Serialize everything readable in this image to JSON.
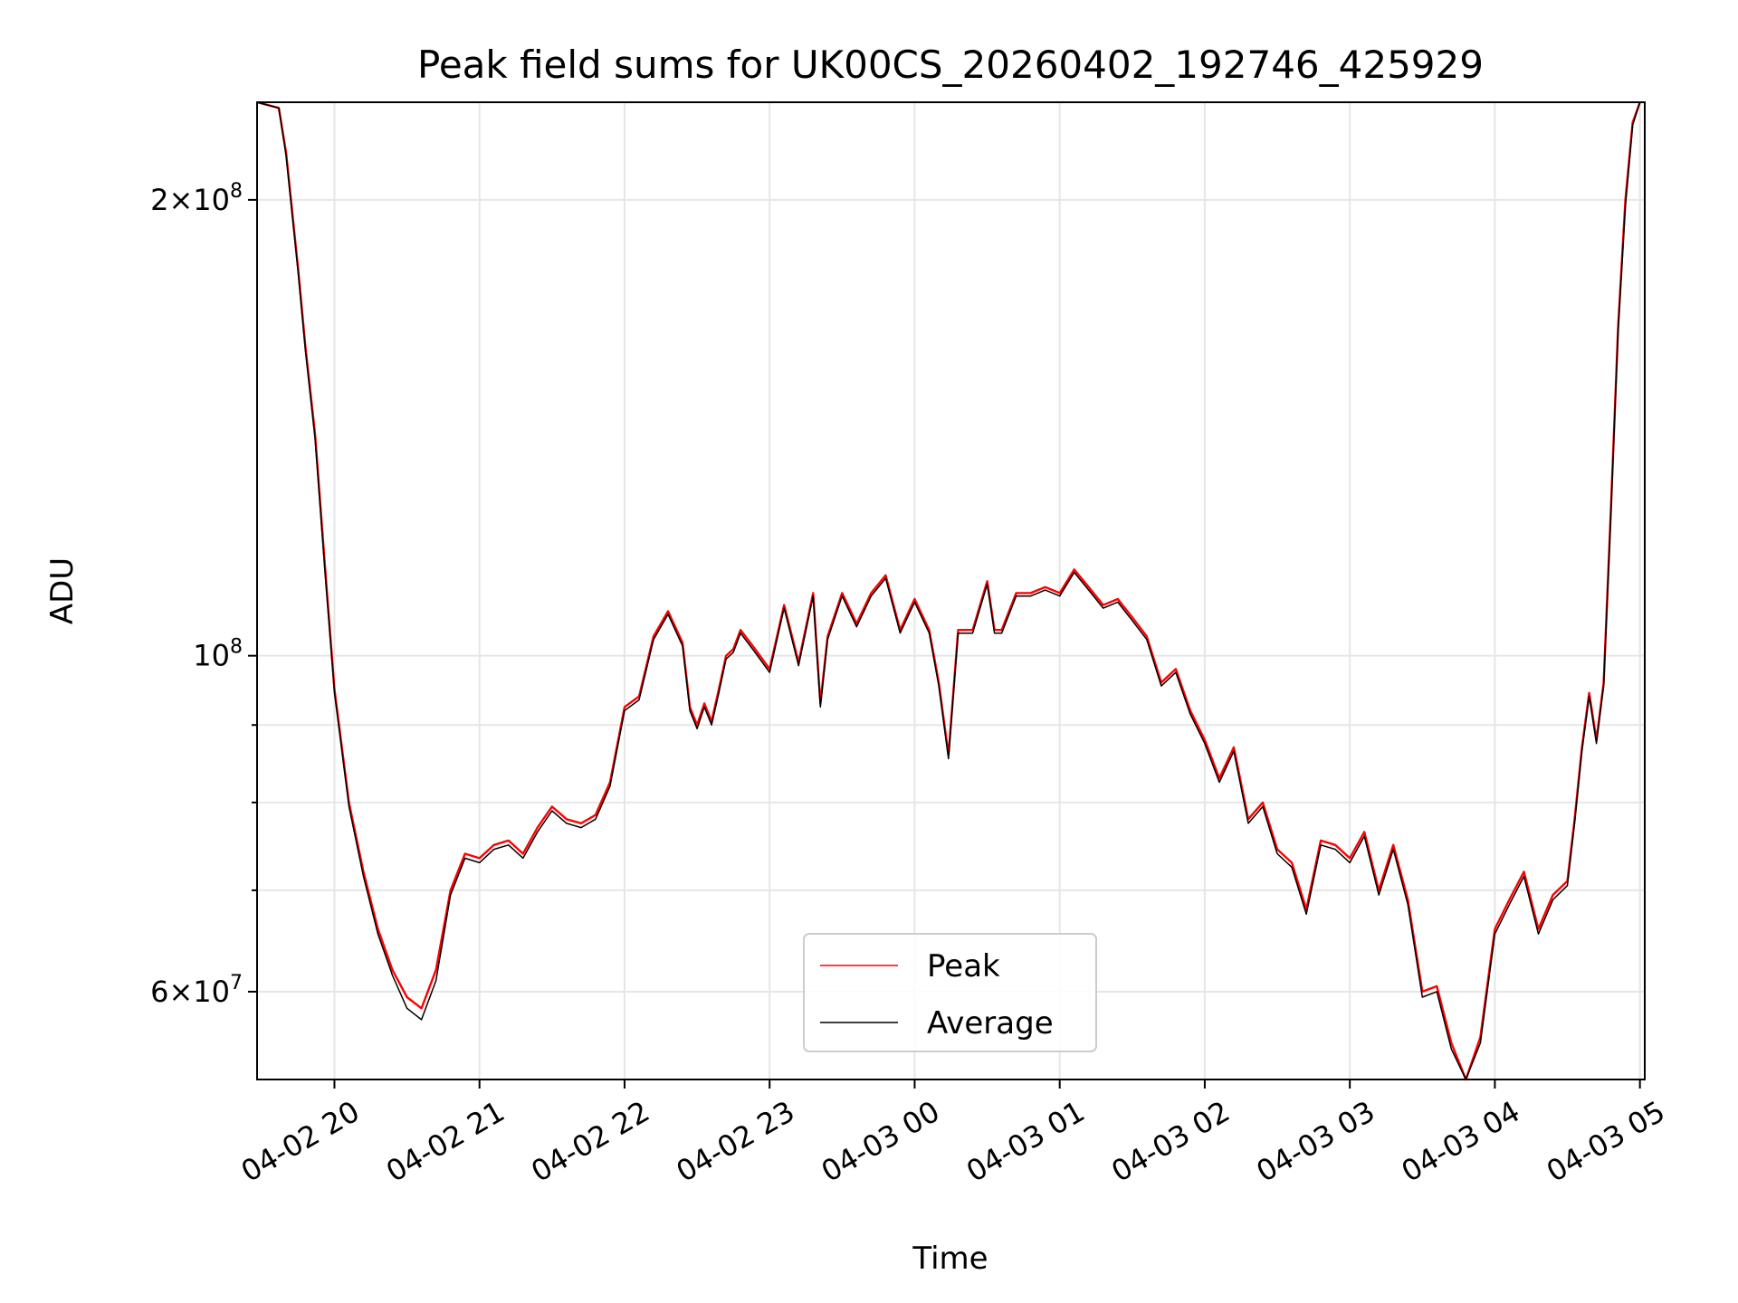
{
  "chart_data": {
    "type": "line",
    "title": "Peak field sums for UK00CS_20260402_192746_425929",
    "xlabel": "Time",
    "ylabel": "ADU",
    "yscale": "log",
    "xlim": [
      "2026-04-02T19:28",
      "2026-04-03T05:02"
    ],
    "ylim": [
      52500000,
      232000000
    ],
    "grid": true,
    "legend_position": "lower-center",
    "x_ticks": [
      {
        "t": "2026-04-02T20:00",
        "label": "04-02 20"
      },
      {
        "t": "2026-04-02T21:00",
        "label": "04-02 21"
      },
      {
        "t": "2026-04-02T22:00",
        "label": "04-02 22"
      },
      {
        "t": "2026-04-02T23:00",
        "label": "04-02 23"
      },
      {
        "t": "2026-04-03T00:00",
        "label": "04-03 00"
      },
      {
        "t": "2026-04-03T01:00",
        "label": "04-03 01"
      },
      {
        "t": "2026-04-03T02:00",
        "label": "04-03 02"
      },
      {
        "t": "2026-04-03T03:00",
        "label": "04-03 03"
      },
      {
        "t": "2026-04-03T04:00",
        "label": "04-03 04"
      },
      {
        "t": "2026-04-03T05:00",
        "label": "04-03 05"
      }
    ],
    "y_major_ticks": [
      {
        "value": 60000000,
        "mantissa": "6",
        "exponent": "7"
      },
      {
        "value": 100000000,
        "mantissa": "",
        "exponent": "8"
      },
      {
        "value": 200000000,
        "mantissa": "2",
        "exponent": "8"
      }
    ],
    "y_minor_ticks": [
      70000000,
      80000000,
      90000000
    ],
    "series": [
      {
        "name": "Peak",
        "color": "#ff0000",
        "x": [
          "2026-04-02T19:28",
          "2026-04-02T19:37",
          "2026-04-02T19:40",
          "2026-04-02T19:45",
          "2026-04-02T19:48",
          "2026-04-02T19:52",
          "2026-04-02T19:56",
          "2026-04-02T20:00",
          "2026-04-02T20:06",
          "2026-04-02T20:12",
          "2026-04-02T20:18",
          "2026-04-02T20:24",
          "2026-04-02T20:30",
          "2026-04-02T20:36",
          "2026-04-02T20:42",
          "2026-04-02T20:48",
          "2026-04-02T20:54",
          "2026-04-02T21:00",
          "2026-04-02T21:06",
          "2026-04-02T21:12",
          "2026-04-02T21:18",
          "2026-04-02T21:24",
          "2026-04-02T21:30",
          "2026-04-02T21:36",
          "2026-04-02T21:42",
          "2026-04-02T21:48",
          "2026-04-02T21:54",
          "2026-04-02T22:00",
          "2026-04-02T22:06",
          "2026-04-02T22:12",
          "2026-04-02T22:18",
          "2026-04-02T22:24",
          "2026-04-02T22:27",
          "2026-04-02T22:30",
          "2026-04-02T22:33",
          "2026-04-02T22:36",
          "2026-04-02T22:39",
          "2026-04-02T22:42",
          "2026-04-02T22:45",
          "2026-04-02T22:48",
          "2026-04-02T22:54",
          "2026-04-02T23:00",
          "2026-04-02T23:06",
          "2026-04-02T23:12",
          "2026-04-02T23:18",
          "2026-04-02T23:21",
          "2026-04-02T23:24",
          "2026-04-02T23:30",
          "2026-04-02T23:36",
          "2026-04-02T23:42",
          "2026-04-02T23:48",
          "2026-04-02T23:54",
          "2026-04-03T00:00",
          "2026-04-03T00:06",
          "2026-04-03T00:10",
          "2026-04-03T00:14",
          "2026-04-03T00:18",
          "2026-04-03T00:24",
          "2026-04-03T00:30",
          "2026-04-03T00:33",
          "2026-04-03T00:36",
          "2026-04-03T00:42",
          "2026-04-03T00:48",
          "2026-04-03T00:54",
          "2026-04-03T01:00",
          "2026-04-03T01:06",
          "2026-04-03T01:12",
          "2026-04-03T01:18",
          "2026-04-03T01:24",
          "2026-04-03T01:30",
          "2026-04-03T01:36",
          "2026-04-03T01:42",
          "2026-04-03T01:48",
          "2026-04-03T01:54",
          "2026-04-03T02:00",
          "2026-04-03T02:06",
          "2026-04-03T02:12",
          "2026-04-03T02:18",
          "2026-04-03T02:24",
          "2026-04-03T02:30",
          "2026-04-03T02:36",
          "2026-04-03T02:42",
          "2026-04-03T02:48",
          "2026-04-03T02:54",
          "2026-04-03T03:00",
          "2026-04-03T03:06",
          "2026-04-03T03:12",
          "2026-04-03T03:18",
          "2026-04-03T03:24",
          "2026-04-03T03:30",
          "2026-04-03T03:36",
          "2026-04-03T03:42",
          "2026-04-03T03:48",
          "2026-04-03T03:54",
          "2026-04-03T04:00",
          "2026-04-03T04:06",
          "2026-04-03T04:12",
          "2026-04-03T04:18",
          "2026-04-03T04:24",
          "2026-04-03T04:30",
          "2026-04-03T04:33",
          "2026-04-03T04:36",
          "2026-04-03T04:39",
          "2026-04-03T04:42",
          "2026-04-03T04:45",
          "2026-04-03T04:48",
          "2026-04-03T04:51",
          "2026-04-03T04:54",
          "2026-04-03T04:57",
          "2026-04-03T05:00"
        ],
        "values": [
          232000000,
          230000000,
          215000000,
          180000000,
          160000000,
          140000000,
          115000000,
          95000000,
          80000000,
          72000000,
          66000000,
          62000000,
          59500000,
          58500000,
          62000000,
          70000000,
          74000000,
          73500000,
          75000000,
          75500000,
          74000000,
          77000000,
          79500000,
          78000000,
          77500000,
          78500000,
          82500000,
          92500000,
          94000000,
          103000000,
          107000000,
          102000000,
          92500000,
          90000000,
          93000000,
          90500000,
          95000000,
          100000000,
          101000000,
          104000000,
          101000000,
          98000000,
          108000000,
          99000000,
          110000000,
          93000000,
          103000000,
          110000000,
          105000000,
          110000000,
          113000000,
          104000000,
          109000000,
          104000000,
          96000000,
          86000000,
          104000000,
          104000000,
          112000000,
          104000000,
          104000000,
          110000000,
          110000000,
          111000000,
          110000000,
          114000000,
          111000000,
          108000000,
          109000000,
          106000000,
          103000000,
          96000000,
          98000000,
          92000000,
          88000000,
          83000000,
          87000000,
          78000000,
          80000000,
          74500000,
          73000000,
          68000000,
          75500000,
          75000000,
          73500000,
          76500000,
          70000000,
          75000000,
          69000000,
          60000000,
          60500000,
          55500000,
          52500000,
          56000000,
          66000000,
          69000000,
          72000000,
          66000000,
          69500000,
          71000000,
          78000000,
          87000000,
          94500000,
          88000000,
          96000000,
          125000000,
          165000000,
          200000000,
          225000000,
          232000000
        ]
      },
      {
        "name": "Average",
        "color": "#000000",
        "x": [
          "2026-04-02T19:28",
          "2026-04-02T19:37",
          "2026-04-02T19:40",
          "2026-04-02T19:45",
          "2026-04-02T19:48",
          "2026-04-02T19:52",
          "2026-04-02T19:56",
          "2026-04-02T20:00",
          "2026-04-02T20:06",
          "2026-04-02T20:12",
          "2026-04-02T20:18",
          "2026-04-02T20:24",
          "2026-04-02T20:30",
          "2026-04-02T20:36",
          "2026-04-02T20:42",
          "2026-04-02T20:48",
          "2026-04-02T20:54",
          "2026-04-02T21:00",
          "2026-04-02T21:06",
          "2026-04-02T21:12",
          "2026-04-02T21:18",
          "2026-04-02T21:24",
          "2026-04-02T21:30",
          "2026-04-02T21:36",
          "2026-04-02T21:42",
          "2026-04-02T21:48",
          "2026-04-02T21:54",
          "2026-04-02T22:00",
          "2026-04-02T22:06",
          "2026-04-02T22:12",
          "2026-04-02T22:18",
          "2026-04-02T22:24",
          "2026-04-02T22:27",
          "2026-04-02T22:30",
          "2026-04-02T22:33",
          "2026-04-02T22:36",
          "2026-04-02T22:39",
          "2026-04-02T22:42",
          "2026-04-02T22:45",
          "2026-04-02T22:48",
          "2026-04-02T22:54",
          "2026-04-02T23:00",
          "2026-04-02T23:06",
          "2026-04-02T23:12",
          "2026-04-02T23:18",
          "2026-04-02T23:21",
          "2026-04-02T23:24",
          "2026-04-02T23:30",
          "2026-04-02T23:36",
          "2026-04-02T23:42",
          "2026-04-02T23:48",
          "2026-04-02T23:54",
          "2026-04-03T00:00",
          "2026-04-03T00:06",
          "2026-04-03T00:10",
          "2026-04-03T00:14",
          "2026-04-03T00:18",
          "2026-04-03T00:24",
          "2026-04-03T00:30",
          "2026-04-03T00:33",
          "2026-04-03T00:36",
          "2026-04-03T00:42",
          "2026-04-03T00:48",
          "2026-04-03T00:54",
          "2026-04-03T01:00",
          "2026-04-03T01:06",
          "2026-04-03T01:12",
          "2026-04-03T01:18",
          "2026-04-03T01:24",
          "2026-04-03T01:30",
          "2026-04-03T01:36",
          "2026-04-03T01:42",
          "2026-04-03T01:48",
          "2026-04-03T01:54",
          "2026-04-03T02:00",
          "2026-04-03T02:06",
          "2026-04-03T02:12",
          "2026-04-03T02:18",
          "2026-04-03T02:24",
          "2026-04-03T02:30",
          "2026-04-03T02:36",
          "2026-04-03T02:42",
          "2026-04-03T02:48",
          "2026-04-03T02:54",
          "2026-04-03T03:00",
          "2026-04-03T03:06",
          "2026-04-03T03:12",
          "2026-04-03T03:18",
          "2026-04-03T03:24",
          "2026-04-03T03:30",
          "2026-04-03T03:36",
          "2026-04-03T03:42",
          "2026-04-03T03:48",
          "2026-04-03T03:54",
          "2026-04-03T04:00",
          "2026-04-03T04:06",
          "2026-04-03T04:12",
          "2026-04-03T04:18",
          "2026-04-03T04:24",
          "2026-04-03T04:30",
          "2026-04-03T04:33",
          "2026-04-03T04:36",
          "2026-04-03T04:39",
          "2026-04-03T04:42",
          "2026-04-03T04:45",
          "2026-04-03T04:48",
          "2026-04-03T04:51",
          "2026-04-03T04:54",
          "2026-04-03T04:57",
          "2026-04-03T05:00"
        ],
        "values": [
          232000000,
          230000000,
          214000000,
          179000000,
          159000000,
          139000000,
          114000000,
          94500000,
          79500000,
          71500000,
          65500000,
          61500000,
          58500000,
          57500000,
          61000000,
          69500000,
          73500000,
          73000000,
          74500000,
          75000000,
          73500000,
          76500000,
          79000000,
          77500000,
          77000000,
          78000000,
          82000000,
          92000000,
          93500000,
          102500000,
          106500000,
          101500000,
          92000000,
          89500000,
          92500000,
          90000000,
          94500000,
          99500000,
          100500000,
          103500000,
          100500000,
          97500000,
          107500000,
          98500000,
          109500000,
          92500000,
          102500000,
          109500000,
          104500000,
          109500000,
          112500000,
          103500000,
          108500000,
          103500000,
          95500000,
          85500000,
          103500000,
          103500000,
          111500000,
          103500000,
          103500000,
          109500000,
          109500000,
          110500000,
          109500000,
          113500000,
          110500000,
          107500000,
          108500000,
          105500000,
          102500000,
          95500000,
          97500000,
          91500000,
          87500000,
          82500000,
          86500000,
          77500000,
          79500000,
          74000000,
          72500000,
          67500000,
          75000000,
          74500000,
          73000000,
          76000000,
          69500000,
          74500000,
          68500000,
          59500000,
          60000000,
          55000000,
          52500000,
          55500000,
          65500000,
          68500000,
          71500000,
          65500000,
          69000000,
          70500000,
          77500000,
          86500000,
          94000000,
          87500000,
          95500000,
          124000000,
          164000000,
          198000000,
          224000000,
          232000000
        ]
      }
    ]
  }
}
